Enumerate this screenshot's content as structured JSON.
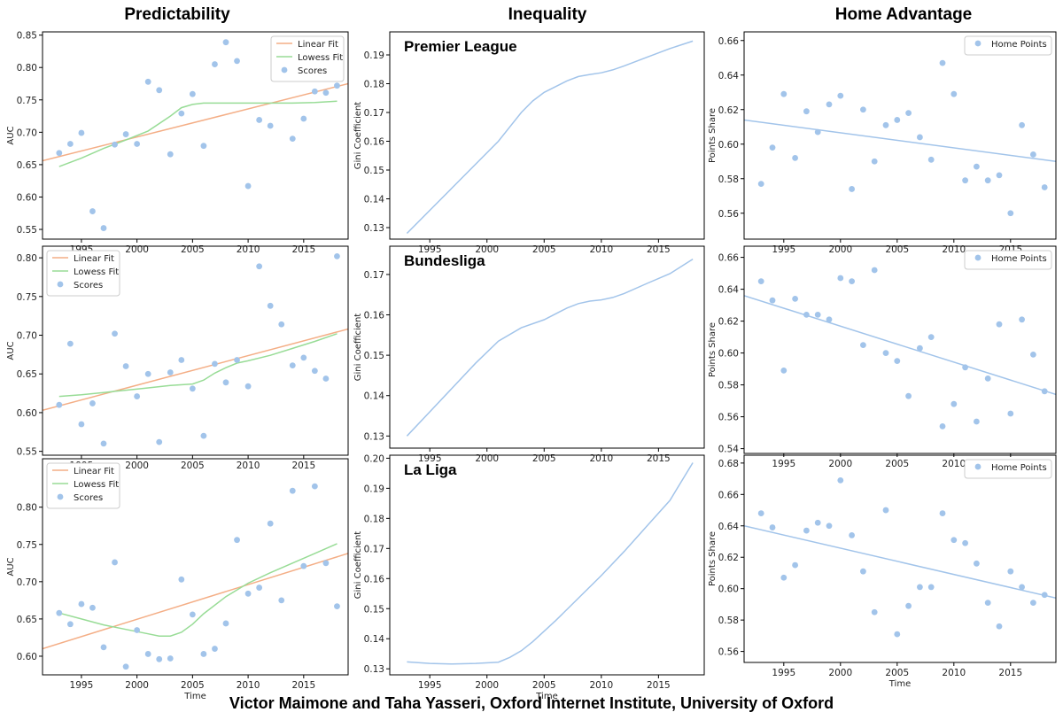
{
  "column_titles": [
    "Predictability",
    "Inequality",
    "Home Advantage"
  ],
  "footer": "Victor Maimone and Taha Yasseri, Oxford Internet Institute, University of Oxford",
  "colors": {
    "scores": "#a2c4ea",
    "linear": "#f4ae86",
    "lowess": "#98dc96",
    "gini": "#a2c4ea",
    "home": "#a2c4ea"
  },
  "chart_data": [
    {
      "type": "scatter",
      "id": "pred-pl",
      "ylabel": "AUC",
      "xlabel": "",
      "xlim": [
        1991.5,
        2019
      ],
      "ylim": [
        0.535,
        0.855
      ],
      "xticks": [
        1995,
        2000,
        2005,
        2010,
        2015
      ],
      "yticks": [
        0.55,
        0.6,
        0.65,
        0.7,
        0.75,
        0.8,
        0.85
      ],
      "ydec": 2,
      "legend": [
        "Linear Fit",
        "Lowess Fit",
        "Scores"
      ],
      "legend_pos": "top-right",
      "scores": {
        "x": [
          1993,
          1994,
          1995,
          1996,
          1997,
          1998,
          1999,
          2000,
          2001,
          2002,
          2003,
          2004,
          2005,
          2006,
          2007,
          2008,
          2009,
          2010,
          2011,
          2012,
          2013,
          2014,
          2015,
          2016,
          2017,
          2018
        ],
        "y": [
          0.668,
          0.682,
          0.699,
          0.578,
          0.552,
          0.681,
          0.697,
          0.682,
          0.778,
          0.765,
          0.666,
          0.729,
          0.759,
          0.679,
          0.805,
          0.839,
          0.81,
          0.617,
          0.719,
          0.71,
          0.788,
          0.69,
          0.721,
          0.763,
          0.761,
          0.772
        ]
      },
      "linear": {
        "x": [
          1991.5,
          2019
        ],
        "y": [
          0.656,
          0.775
        ]
      },
      "lowess": {
        "x": [
          1993,
          1995,
          1997,
          1999,
          2001,
          2003,
          2004,
          2005,
          2006,
          2008,
          2010,
          2012,
          2014,
          2016,
          2018
        ],
        "y": [
          0.647,
          0.66,
          0.675,
          0.688,
          0.702,
          0.725,
          0.738,
          0.743,
          0.745,
          0.745,
          0.745,
          0.745,
          0.745,
          0.746,
          0.748
        ]
      }
    },
    {
      "type": "scatter",
      "id": "pred-bl",
      "ylabel": "AUC",
      "xlabel": "",
      "xlim": [
        1991.5,
        2019
      ],
      "ylim": [
        0.545,
        0.815
      ],
      "xticks": [
        1995,
        2000,
        2005,
        2010,
        2015
      ],
      "yticks": [
        0.55,
        0.6,
        0.65,
        0.7,
        0.75,
        0.8
      ],
      "ydec": 2,
      "legend": [
        "Linear Fit",
        "Lowess Fit",
        "Scores"
      ],
      "legend_pos": "top-left",
      "scores": {
        "x": [
          1993,
          1994,
          1995,
          1996,
          1997,
          1998,
          1999,
          2000,
          2001,
          2002,
          2003,
          2004,
          2005,
          2006,
          2007,
          2008,
          2009,
          2010,
          2011,
          2012,
          2013,
          2014,
          2015,
          2016,
          2017,
          2018
        ],
        "y": [
          0.61,
          0.689,
          0.585,
          0.612,
          0.56,
          0.702,
          0.66,
          0.621,
          0.65,
          0.562,
          0.652,
          0.668,
          0.631,
          0.57,
          0.663,
          0.639,
          0.668,
          0.634,
          0.789,
          0.738,
          0.714,
          0.661,
          0.671,
          0.654,
          0.644,
          0.802
        ]
      },
      "linear": {
        "x": [
          1991.5,
          2019
        ],
        "y": [
          0.603,
          0.708
        ]
      },
      "lowess": {
        "x": [
          1993,
          1995,
          1997,
          1999,
          2001,
          2003,
          2005,
          2006,
          2007,
          2008,
          2009,
          2010,
          2012,
          2014,
          2016,
          2018
        ],
        "y": [
          0.621,
          0.623,
          0.626,
          0.629,
          0.632,
          0.635,
          0.637,
          0.642,
          0.651,
          0.658,
          0.664,
          0.667,
          0.674,
          0.683,
          0.692,
          0.702
        ]
      }
    },
    {
      "type": "scatter",
      "id": "pred-ll",
      "ylabel": "AUC",
      "xlabel": "Time",
      "xlim": [
        1991.5,
        2019
      ],
      "ylim": [
        0.575,
        0.865
      ],
      "xticks": [
        1995,
        2000,
        2005,
        2010,
        2015
      ],
      "yticks": [
        0.6,
        0.65,
        0.7,
        0.75,
        0.8
      ],
      "ydec": 2,
      "legend": [
        "Linear Fit",
        "Lowess Fit",
        "Scores"
      ],
      "legend_pos": "top-left",
      "scores": {
        "x": [
          1993,
          1994,
          1995,
          1996,
          1997,
          1998,
          1999,
          2000,
          2001,
          2002,
          2003,
          2004,
          2005,
          2006,
          2007,
          2008,
          2009,
          2010,
          2011,
          2012,
          2013,
          2014,
          2015,
          2016,
          2017,
          2018
        ],
        "y": [
          0.658,
          0.643,
          0.67,
          0.665,
          0.612,
          0.726,
          0.586,
          0.635,
          0.603,
          0.596,
          0.597,
          0.703,
          0.656,
          0.603,
          0.61,
          0.644,
          0.756,
          0.684,
          0.692,
          0.778,
          0.675,
          0.822,
          0.721,
          0.828,
          0.725,
          0.667
        ]
      },
      "linear": {
        "x": [
          1991.5,
          2019
        ],
        "y": [
          0.61,
          0.738
        ]
      },
      "lowess": {
        "x": [
          1993,
          1995,
          1997,
          1999,
          2001,
          2002,
          2003,
          2004,
          2005,
          2006,
          2008,
          2010,
          2012,
          2014,
          2016,
          2018
        ],
        "y": [
          0.658,
          0.65,
          0.642,
          0.636,
          0.63,
          0.627,
          0.627,
          0.632,
          0.643,
          0.657,
          0.68,
          0.698,
          0.712,
          0.725,
          0.738,
          0.751
        ]
      }
    },
    {
      "type": "line",
      "id": "gini-pl",
      "ylabel": "Gini Coefficient",
      "xlabel": "",
      "title": "Premier League",
      "xlim": [
        1991.5,
        2019
      ],
      "ylim": [
        0.126,
        0.198
      ],
      "xticks": [
        1995,
        2000,
        2005,
        2010,
        2015
      ],
      "yticks": [
        0.13,
        0.14,
        0.15,
        0.16,
        0.17,
        0.18,
        0.19
      ],
      "ydec": 2,
      "series": [
        {
          "x": [
            1993,
            1995,
            1997,
            1999,
            2001,
            2002,
            2003,
            2004,
            2005,
            2006,
            2007,
            2008,
            2009,
            2010,
            2011,
            2012,
            2014,
            2016,
            2018
          ],
          "y": [
            0.128,
            0.136,
            0.144,
            0.152,
            0.16,
            0.165,
            0.17,
            0.174,
            0.177,
            0.179,
            0.181,
            0.1825,
            0.1832,
            0.1838,
            0.1848,
            0.1862,
            0.1892,
            0.1922,
            0.1948
          ]
        }
      ]
    },
    {
      "type": "line",
      "id": "gini-bl",
      "ylabel": "Gini Coefficient",
      "xlabel": "",
      "title": "Bundesliga",
      "xlim": [
        1991.5,
        2019
      ],
      "ylim": [
        0.127,
        0.177
      ],
      "xticks": [
        1995,
        2000,
        2005,
        2010,
        2015
      ],
      "yticks": [
        0.13,
        0.14,
        0.15,
        0.16,
        0.17
      ],
      "ydec": 2,
      "series": [
        {
          "x": [
            1993,
            1995,
            1997,
            1999,
            2001,
            2003,
            2005,
            2007,
            2008,
            2009,
            2010,
            2011,
            2012,
            2014,
            2016,
            2018
          ],
          "y": [
            0.13,
            0.136,
            0.142,
            0.148,
            0.1535,
            0.1568,
            0.1588,
            0.1617,
            0.1628,
            0.1634,
            0.1637,
            0.1643,
            0.1653,
            0.1678,
            0.1702,
            0.1738
          ]
        }
      ]
    },
    {
      "type": "line",
      "id": "gini-ll",
      "ylabel": "Gini Coefficient",
      "xlabel": "Time",
      "title": "La Liga",
      "xlim": [
        1991.5,
        2019
      ],
      "ylim": [
        0.128,
        0.201
      ],
      "xticks": [
        1995,
        2000,
        2005,
        2010,
        2015
      ],
      "yticks": [
        0.13,
        0.14,
        0.15,
        0.16,
        0.17,
        0.18,
        0.19,
        0.2
      ],
      "ydec": 2,
      "series": [
        {
          "x": [
            1993,
            1995,
            1997,
            1999,
            2001,
            2002,
            2003,
            2004,
            2005,
            2006,
            2008,
            2010,
            2012,
            2014,
            2016,
            2018
          ],
          "y": [
            0.1323,
            0.1318,
            0.1316,
            0.1318,
            0.1322,
            0.1338,
            0.136,
            0.139,
            0.1425,
            0.146,
            0.1535,
            0.161,
            0.169,
            0.1775,
            0.186,
            0.1985
          ]
        }
      ]
    },
    {
      "type": "scatter",
      "id": "home-pl",
      "ylabel": "Points Share",
      "xlabel": "",
      "xlim": [
        1991.5,
        2019
      ],
      "ylim": [
        0.545,
        0.665
      ],
      "xticks": [
        1995,
        2000,
        2005,
        2010,
        2015
      ],
      "yticks": [
        0.56,
        0.58,
        0.6,
        0.62,
        0.64,
        0.66
      ],
      "ydec": 2,
      "legend": [
        "Home Points"
      ],
      "legend_pos": "top-right",
      "scores": {
        "x": [
          1993,
          1994,
          1995,
          1996,
          1997,
          1998,
          1999,
          2000,
          2001,
          2002,
          2003,
          2004,
          2005,
          2006,
          2007,
          2008,
          2009,
          2010,
          2011,
          2012,
          2013,
          2014,
          2015,
          2016,
          2017,
          2018
        ],
        "y": [
          0.577,
          0.598,
          0.629,
          0.592,
          0.619,
          0.607,
          0.623,
          0.628,
          0.574,
          0.62,
          0.59,
          0.611,
          0.614,
          0.618,
          0.604,
          0.591,
          0.647,
          0.629,
          0.579,
          0.587,
          0.579,
          0.582,
          0.56,
          0.611,
          0.594,
          0.575
        ]
      },
      "linear": {
        "x": [
          1991.5,
          2019
        ],
        "y": [
          0.614,
          0.59
        ]
      }
    },
    {
      "type": "scatter",
      "id": "home-bl",
      "ylabel": "Points Share",
      "xlabel": "",
      "xlim": [
        1991.5,
        2019
      ],
      "ylim": [
        0.537,
        0.667
      ],
      "xticks": [
        1995,
        2000,
        2005,
        2010,
        2015
      ],
      "yticks": [
        0.54,
        0.56,
        0.58,
        0.6,
        0.62,
        0.64,
        0.66
      ],
      "ydec": 2,
      "legend": [
        "Home Points"
      ],
      "legend_pos": "top-right",
      "scores": {
        "x": [
          1993,
          1994,
          1995,
          1996,
          1997,
          1998,
          1999,
          2000,
          2001,
          2002,
          2003,
          2004,
          2005,
          2006,
          2007,
          2008,
          2009,
          2010,
          2011,
          2012,
          2013,
          2014,
          2015,
          2016,
          2017,
          2018
        ],
        "y": [
          0.645,
          0.633,
          0.589,
          0.634,
          0.624,
          0.624,
          0.621,
          0.647,
          0.645,
          0.605,
          0.652,
          0.6,
          0.595,
          0.573,
          0.603,
          0.61,
          0.554,
          0.568,
          0.591,
          0.557,
          0.584,
          0.618,
          0.562,
          0.621,
          0.599,
          0.576
        ]
      },
      "linear": {
        "x": [
          1991.5,
          2019
        ],
        "y": [
          0.636,
          0.574
        ]
      }
    },
    {
      "type": "scatter",
      "id": "home-ll",
      "ylabel": "Points Share",
      "xlabel": "Time",
      "xlim": [
        1991.5,
        2019
      ],
      "ylim": [
        0.553,
        0.685
      ],
      "xticks": [
        1995,
        2000,
        2005,
        2010,
        2015
      ],
      "yticks": [
        0.56,
        0.58,
        0.6,
        0.62,
        0.64,
        0.66,
        0.68
      ],
      "ydec": 2,
      "legend": [
        "Home Points"
      ],
      "legend_pos": "top-right",
      "scores": {
        "x": [
          1993,
          1994,
          1995,
          1996,
          1997,
          1998,
          1999,
          2000,
          2001,
          2002,
          2003,
          2004,
          2005,
          2006,
          2007,
          2008,
          2009,
          2010,
          2011,
          2012,
          2013,
          2014,
          2015,
          2016,
          2017,
          2018
        ],
        "y": [
          0.648,
          0.639,
          0.607,
          0.615,
          0.637,
          0.642,
          0.64,
          0.669,
          0.634,
          0.611,
          0.585,
          0.65,
          0.571,
          0.589,
          0.601,
          0.601,
          0.648,
          0.631,
          0.629,
          0.616,
          0.591,
          0.576,
          0.611,
          0.601,
          0.591,
          0.596
        ]
      },
      "linear": {
        "x": [
          1991.5,
          2019
        ],
        "y": [
          0.64,
          0.594
        ]
      }
    }
  ]
}
